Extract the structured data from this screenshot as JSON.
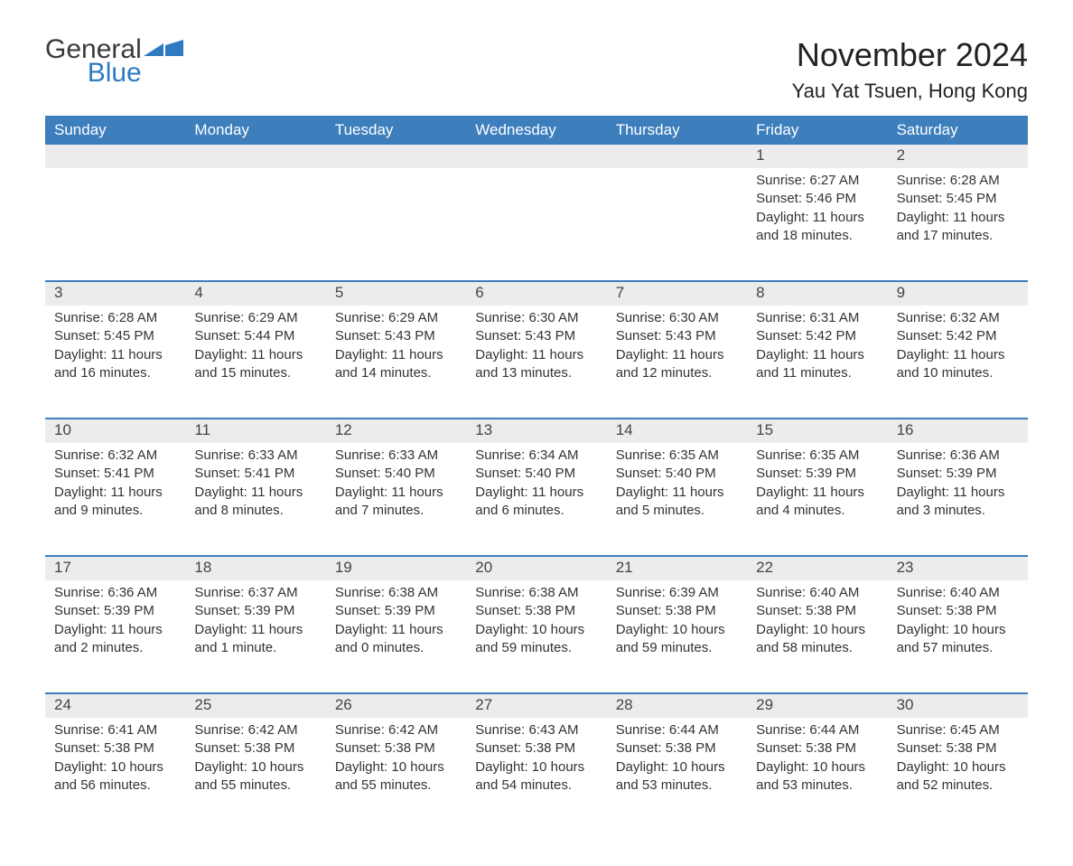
{
  "logo": {
    "text1": "General",
    "text2": "Blue"
  },
  "title": "November 2024",
  "location": "Yau Yat Tsuen, Hong Kong",
  "colors": {
    "header_bg": "#3d7ebd",
    "header_text": "#ffffff",
    "daynum_bg": "#ececec",
    "border": "#3d7ebd",
    "logo_blue": "#2e7bc0",
    "page_bg": "#ffffff",
    "text": "#333333"
  },
  "day_labels": [
    "Sunday",
    "Monday",
    "Tuesday",
    "Wednesday",
    "Thursday",
    "Friday",
    "Saturday"
  ],
  "labels": {
    "sunrise": "Sunrise:",
    "sunset": "Sunset:",
    "daylight": "Daylight:"
  },
  "weeks": [
    [
      {
        "n": "",
        "sr": "",
        "ss": "",
        "dl": ""
      },
      {
        "n": "",
        "sr": "",
        "ss": "",
        "dl": ""
      },
      {
        "n": "",
        "sr": "",
        "ss": "",
        "dl": ""
      },
      {
        "n": "",
        "sr": "",
        "ss": "",
        "dl": ""
      },
      {
        "n": "",
        "sr": "",
        "ss": "",
        "dl": ""
      },
      {
        "n": "1",
        "sr": "6:27 AM",
        "ss": "5:46 PM",
        "dl": "11 hours and 18 minutes."
      },
      {
        "n": "2",
        "sr": "6:28 AM",
        "ss": "5:45 PM",
        "dl": "11 hours and 17 minutes."
      }
    ],
    [
      {
        "n": "3",
        "sr": "6:28 AM",
        "ss": "5:45 PM",
        "dl": "11 hours and 16 minutes."
      },
      {
        "n": "4",
        "sr": "6:29 AM",
        "ss": "5:44 PM",
        "dl": "11 hours and 15 minutes."
      },
      {
        "n": "5",
        "sr": "6:29 AM",
        "ss": "5:43 PM",
        "dl": "11 hours and 14 minutes."
      },
      {
        "n": "6",
        "sr": "6:30 AM",
        "ss": "5:43 PM",
        "dl": "11 hours and 13 minutes."
      },
      {
        "n": "7",
        "sr": "6:30 AM",
        "ss": "5:43 PM",
        "dl": "11 hours and 12 minutes."
      },
      {
        "n": "8",
        "sr": "6:31 AM",
        "ss": "5:42 PM",
        "dl": "11 hours and 11 minutes."
      },
      {
        "n": "9",
        "sr": "6:32 AM",
        "ss": "5:42 PM",
        "dl": "11 hours and 10 minutes."
      }
    ],
    [
      {
        "n": "10",
        "sr": "6:32 AM",
        "ss": "5:41 PM",
        "dl": "11 hours and 9 minutes."
      },
      {
        "n": "11",
        "sr": "6:33 AM",
        "ss": "5:41 PM",
        "dl": "11 hours and 8 minutes."
      },
      {
        "n": "12",
        "sr": "6:33 AM",
        "ss": "5:40 PM",
        "dl": "11 hours and 7 minutes."
      },
      {
        "n": "13",
        "sr": "6:34 AM",
        "ss": "5:40 PM",
        "dl": "11 hours and 6 minutes."
      },
      {
        "n": "14",
        "sr": "6:35 AM",
        "ss": "5:40 PM",
        "dl": "11 hours and 5 minutes."
      },
      {
        "n": "15",
        "sr": "6:35 AM",
        "ss": "5:39 PM",
        "dl": "11 hours and 4 minutes."
      },
      {
        "n": "16",
        "sr": "6:36 AM",
        "ss": "5:39 PM",
        "dl": "11 hours and 3 minutes."
      }
    ],
    [
      {
        "n": "17",
        "sr": "6:36 AM",
        "ss": "5:39 PM",
        "dl": "11 hours and 2 minutes."
      },
      {
        "n": "18",
        "sr": "6:37 AM",
        "ss": "5:39 PM",
        "dl": "11 hours and 1 minute."
      },
      {
        "n": "19",
        "sr": "6:38 AM",
        "ss": "5:39 PM",
        "dl": "11 hours and 0 minutes."
      },
      {
        "n": "20",
        "sr": "6:38 AM",
        "ss": "5:38 PM",
        "dl": "10 hours and 59 minutes."
      },
      {
        "n": "21",
        "sr": "6:39 AM",
        "ss": "5:38 PM",
        "dl": "10 hours and 59 minutes."
      },
      {
        "n": "22",
        "sr": "6:40 AM",
        "ss": "5:38 PM",
        "dl": "10 hours and 58 minutes."
      },
      {
        "n": "23",
        "sr": "6:40 AM",
        "ss": "5:38 PM",
        "dl": "10 hours and 57 minutes."
      }
    ],
    [
      {
        "n": "24",
        "sr": "6:41 AM",
        "ss": "5:38 PM",
        "dl": "10 hours and 56 minutes."
      },
      {
        "n": "25",
        "sr": "6:42 AM",
        "ss": "5:38 PM",
        "dl": "10 hours and 55 minutes."
      },
      {
        "n": "26",
        "sr": "6:42 AM",
        "ss": "5:38 PM",
        "dl": "10 hours and 55 minutes."
      },
      {
        "n": "27",
        "sr": "6:43 AM",
        "ss": "5:38 PM",
        "dl": "10 hours and 54 minutes."
      },
      {
        "n": "28",
        "sr": "6:44 AM",
        "ss": "5:38 PM",
        "dl": "10 hours and 53 minutes."
      },
      {
        "n": "29",
        "sr": "6:44 AM",
        "ss": "5:38 PM",
        "dl": "10 hours and 53 minutes."
      },
      {
        "n": "30",
        "sr": "6:45 AM",
        "ss": "5:38 PM",
        "dl": "10 hours and 52 minutes."
      }
    ]
  ]
}
